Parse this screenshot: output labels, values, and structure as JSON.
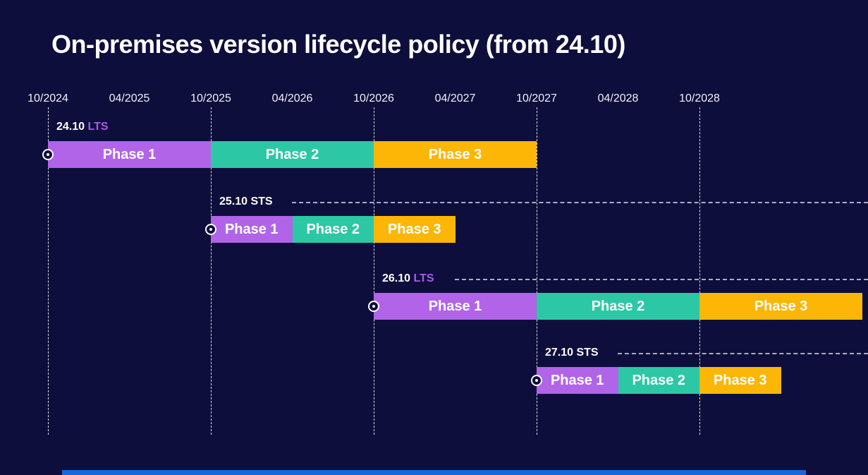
{
  "title": "On-premises version lifecycle policy (from 24.10)",
  "colors": {
    "background": "#0e0e3c",
    "phase1": "#b164e8",
    "phase2": "#2cc8a5",
    "phase3": "#fcb605",
    "lts_text": "#a95ce8",
    "sts_text": "#ffffff",
    "accent_bar": "#1868db",
    "gridline": "rgba(255,255,255,0.85)"
  },
  "chart_data": {
    "type": "gantt",
    "title": "On-premises version lifecycle policy (from 24.10)",
    "axis": {
      "tick_labels": [
        "10/2024",
        "04/2025",
        "10/2025",
        "04/2026",
        "10/2026",
        "04/2027",
        "10/2027",
        "04/2028",
        "10/2028"
      ],
      "gridline_months": [
        "10/2024",
        "10/2025",
        "10/2026",
        "10/2027",
        "10/2028"
      ],
      "months_per_tick": 6
    },
    "legend": "none",
    "releases": [
      {
        "name": "24.10",
        "channel": "LTS",
        "leader_line": false,
        "phases": [
          {
            "label": "Phase 1",
            "start": "10/2024",
            "end": "10/2025",
            "color_key": "phase1"
          },
          {
            "label": "Phase 2",
            "start": "10/2025",
            "end": "10/2026",
            "color_key": "phase2"
          },
          {
            "label": "Phase 3",
            "start": "10/2026",
            "end": "10/2027",
            "color_key": "phase3"
          }
        ]
      },
      {
        "name": "25.10",
        "channel": "STS",
        "leader_line": true,
        "phases": [
          {
            "label": "Phase 1",
            "start": "10/2025",
            "end": "04/2026",
            "color_key": "phase1"
          },
          {
            "label": "Phase 2",
            "start": "04/2026",
            "end": "10/2026",
            "color_key": "phase2"
          },
          {
            "label": "Phase 3",
            "start": "10/2026",
            "end": "04/2027",
            "color_key": "phase3"
          }
        ]
      },
      {
        "name": "26.10",
        "channel": "LTS",
        "leader_line": true,
        "phases": [
          {
            "label": "Phase 1",
            "start": "10/2026",
            "end": "10/2027",
            "color_key": "phase1"
          },
          {
            "label": "Phase 2",
            "start": "10/2027",
            "end": "10/2028",
            "color_key": "phase2"
          },
          {
            "label": "Phase 3",
            "start": "10/2028",
            "end": "10/2029",
            "color_key": "phase3"
          }
        ]
      },
      {
        "name": "27.10",
        "channel": "STS",
        "leader_line": true,
        "phases": [
          {
            "label": "Phase 1",
            "start": "10/2027",
            "end": "04/2028",
            "color_key": "phase1"
          },
          {
            "label": "Phase 2",
            "start": "04/2028",
            "end": "10/2028",
            "color_key": "phase2"
          },
          {
            "label": "Phase 3",
            "start": "10/2028",
            "end": "04/2029",
            "color_key": "phase3"
          }
        ]
      }
    ]
  }
}
